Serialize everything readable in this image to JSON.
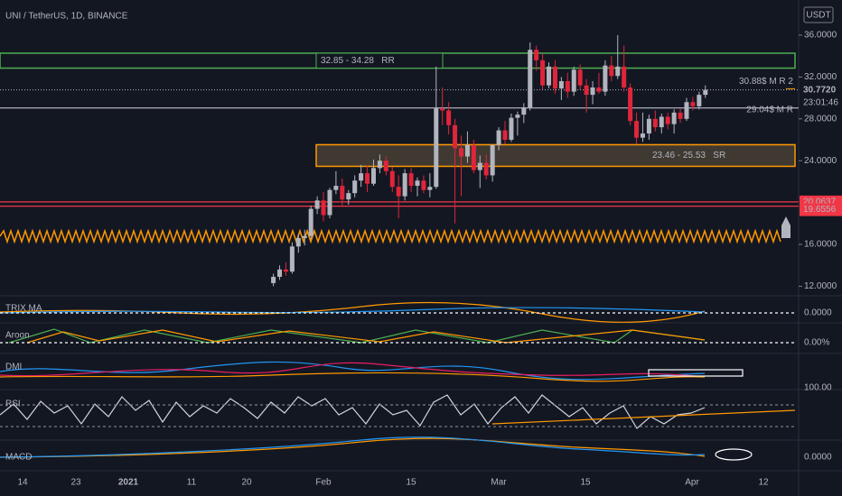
{
  "header": {
    "title": "UNI / TetherUS, 1D, BINANCE",
    "currency": "USDT"
  },
  "price_axis": {
    "ticks": [
      {
        "value": 36,
        "label": "36.0000"
      },
      {
        "value": 32,
        "label": "32.0000"
      },
      {
        "value": 28,
        "label": "28.0000"
      },
      {
        "value": 24,
        "label": "24.0000"
      },
      {
        "value": 16,
        "label": "16.0000"
      },
      {
        "value": 12,
        "label": "12.0000"
      }
    ],
    "last_price": {
      "value": 30.772,
      "label": "30.7720"
    },
    "countdown": "23:01:46"
  },
  "levels": [
    {
      "value": 20.0637,
      "label": "20.0637"
    },
    {
      "value": 19.6556,
      "label": "19.6556"
    }
  ],
  "zones": [
    {
      "low": 32.85,
      "high": 34.28,
      "label": "32.85 - 34.28   RR"
    },
    {
      "low": 23.46,
      "high": 25.53,
      "label": "23.46 - 25.53   SR"
    }
  ],
  "lines": [
    {
      "value": 30.88,
      "label": "30.88$ M R 2"
    },
    {
      "value": 29.04,
      "label": "29.04$ M R"
    }
  ],
  "candles": [
    [
      12.3,
      13.2,
      12.0,
      12.9
    ],
    [
      12.9,
      14.0,
      12.6,
      13.6
    ],
    [
      13.6,
      14.3,
      13.0,
      13.4
    ],
    [
      13.4,
      16.2,
      13.2,
      15.8
    ],
    [
      15.8,
      17.0,
      15.2,
      16.6
    ],
    [
      16.6,
      17.4,
      15.9,
      16.8
    ],
    [
      16.8,
      19.7,
      16.5,
      19.4
    ],
    [
      19.4,
      20.6,
      18.9,
      20.2
    ],
    [
      20.2,
      21.0,
      18.2,
      18.8
    ],
    [
      18.8,
      21.4,
      18.5,
      21.2
    ],
    [
      21.2,
      23.0,
      20.8,
      21.6
    ],
    [
      21.6,
      22.3,
      19.6,
      20.3
    ],
    [
      20.3,
      21.2,
      19.8,
      20.9
    ],
    [
      20.9,
      22.6,
      20.5,
      22.1
    ],
    [
      22.1,
      23.6,
      21.5,
      22.8
    ],
    [
      22.8,
      23.5,
      21.0,
      21.8
    ],
    [
      21.8,
      24.1,
      21.6,
      23.3
    ],
    [
      23.3,
      24.6,
      22.8,
      24.0
    ],
    [
      24.0,
      24.4,
      22.6,
      23.0
    ],
    [
      23.0,
      23.4,
      21.0,
      21.5
    ],
    [
      21.5,
      22.6,
      18.5,
      20.6
    ],
    [
      20.6,
      23.2,
      20.2,
      22.8
    ],
    [
      22.8,
      23.3,
      21.0,
      21.6
    ],
    [
      21.6,
      22.4,
      20.6,
      22.1
    ],
    [
      22.1,
      22.6,
      20.9,
      21.2
    ],
    [
      21.2,
      22.8,
      20.5,
      21.5
    ],
    [
      21.5,
      33.0,
      21.3,
      29.0
    ],
    [
      29.0,
      31.0,
      27.4,
      28.8
    ],
    [
      28.8,
      29.6,
      26.5,
      27.4
    ],
    [
      27.4,
      28.0,
      18.0,
      25.2
    ],
    [
      25.2,
      26.4,
      20.6,
      24.4
    ],
    [
      24.4,
      26.8,
      23.8,
      25.5
    ],
    [
      25.5,
      26.0,
      22.8,
      23.1
    ],
    [
      23.1,
      24.5,
      21.4,
      23.8
    ],
    [
      23.8,
      24.6,
      22.2,
      22.6
    ],
    [
      22.6,
      25.6,
      22.0,
      25.5
    ],
    [
      25.5,
      27.2,
      25.0,
      26.9
    ],
    [
      26.9,
      27.8,
      25.6,
      26.0
    ],
    [
      26.0,
      28.5,
      25.8,
      28.1
    ],
    [
      28.1,
      28.7,
      26.4,
      28.4
    ],
    [
      28.4,
      29.5,
      27.6,
      29.1
    ],
    [
      29.1,
      35.3,
      28.8,
      34.6
    ],
    [
      34.6,
      35.0,
      32.6,
      33.6
    ],
    [
      33.6,
      34.2,
      30.8,
      31.2
    ],
    [
      31.2,
      33.4,
      30.9,
      33.0
    ],
    [
      33.0,
      33.6,
      30.4,
      30.9
    ],
    [
      30.9,
      32.0,
      29.8,
      31.6
    ],
    [
      31.6,
      32.4,
      30.0,
      30.6
    ],
    [
      30.6,
      33.0,
      30.2,
      32.7
    ],
    [
      32.7,
      33.2,
      30.8,
      31.2
    ],
    [
      31.2,
      31.8,
      28.6,
      30.3
    ],
    [
      30.3,
      31.6,
      29.4,
      31.0
    ],
    [
      31.0,
      32.4,
      30.4,
      30.6
    ],
    [
      30.6,
      33.6,
      30.2,
      33.1
    ],
    [
      33.1,
      34.0,
      31.6,
      32.1
    ],
    [
      32.1,
      36.0,
      31.8,
      33.0
    ],
    [
      33.0,
      35.0,
      30.6,
      31.0
    ],
    [
      31.0,
      31.4,
      27.4,
      27.8
    ],
    [
      27.8,
      28.6,
      25.6,
      26.2
    ],
    [
      26.2,
      28.6,
      25.8,
      26.6
    ],
    [
      26.6,
      28.4,
      26.0,
      28.0
    ],
    [
      28.0,
      28.8,
      26.8,
      27.2
    ],
    [
      27.2,
      28.5,
      26.6,
      28.2
    ],
    [
      28.2,
      28.6,
      27.0,
      27.5
    ],
    [
      27.5,
      28.9,
      26.6,
      28.6
    ],
    [
      28.6,
      29.0,
      27.6,
      28.0
    ],
    [
      28.0,
      30.0,
      27.8,
      29.6
    ],
    [
      29.6,
      30.1,
      28.8,
      29.2
    ],
    [
      29.2,
      30.6,
      28.9,
      30.3
    ],
    [
      30.3,
      31.2,
      30.0,
      30.772
    ]
  ],
  "date_labels": [
    "14",
    "23",
    "2021",
    "11",
    "20",
    "Feb",
    "15",
    "Mar",
    "15",
    "Apr",
    "12"
  ],
  "indicators": [
    {
      "name": "TRIX MA",
      "value": "0.0000"
    },
    {
      "name": "Aroon",
      "value": "0.00%"
    },
    {
      "name": "DMI"
    },
    {
      "name": "RSI",
      "value": "100.00"
    },
    {
      "name": "MACD",
      "value": "0.0000"
    }
  ]
}
